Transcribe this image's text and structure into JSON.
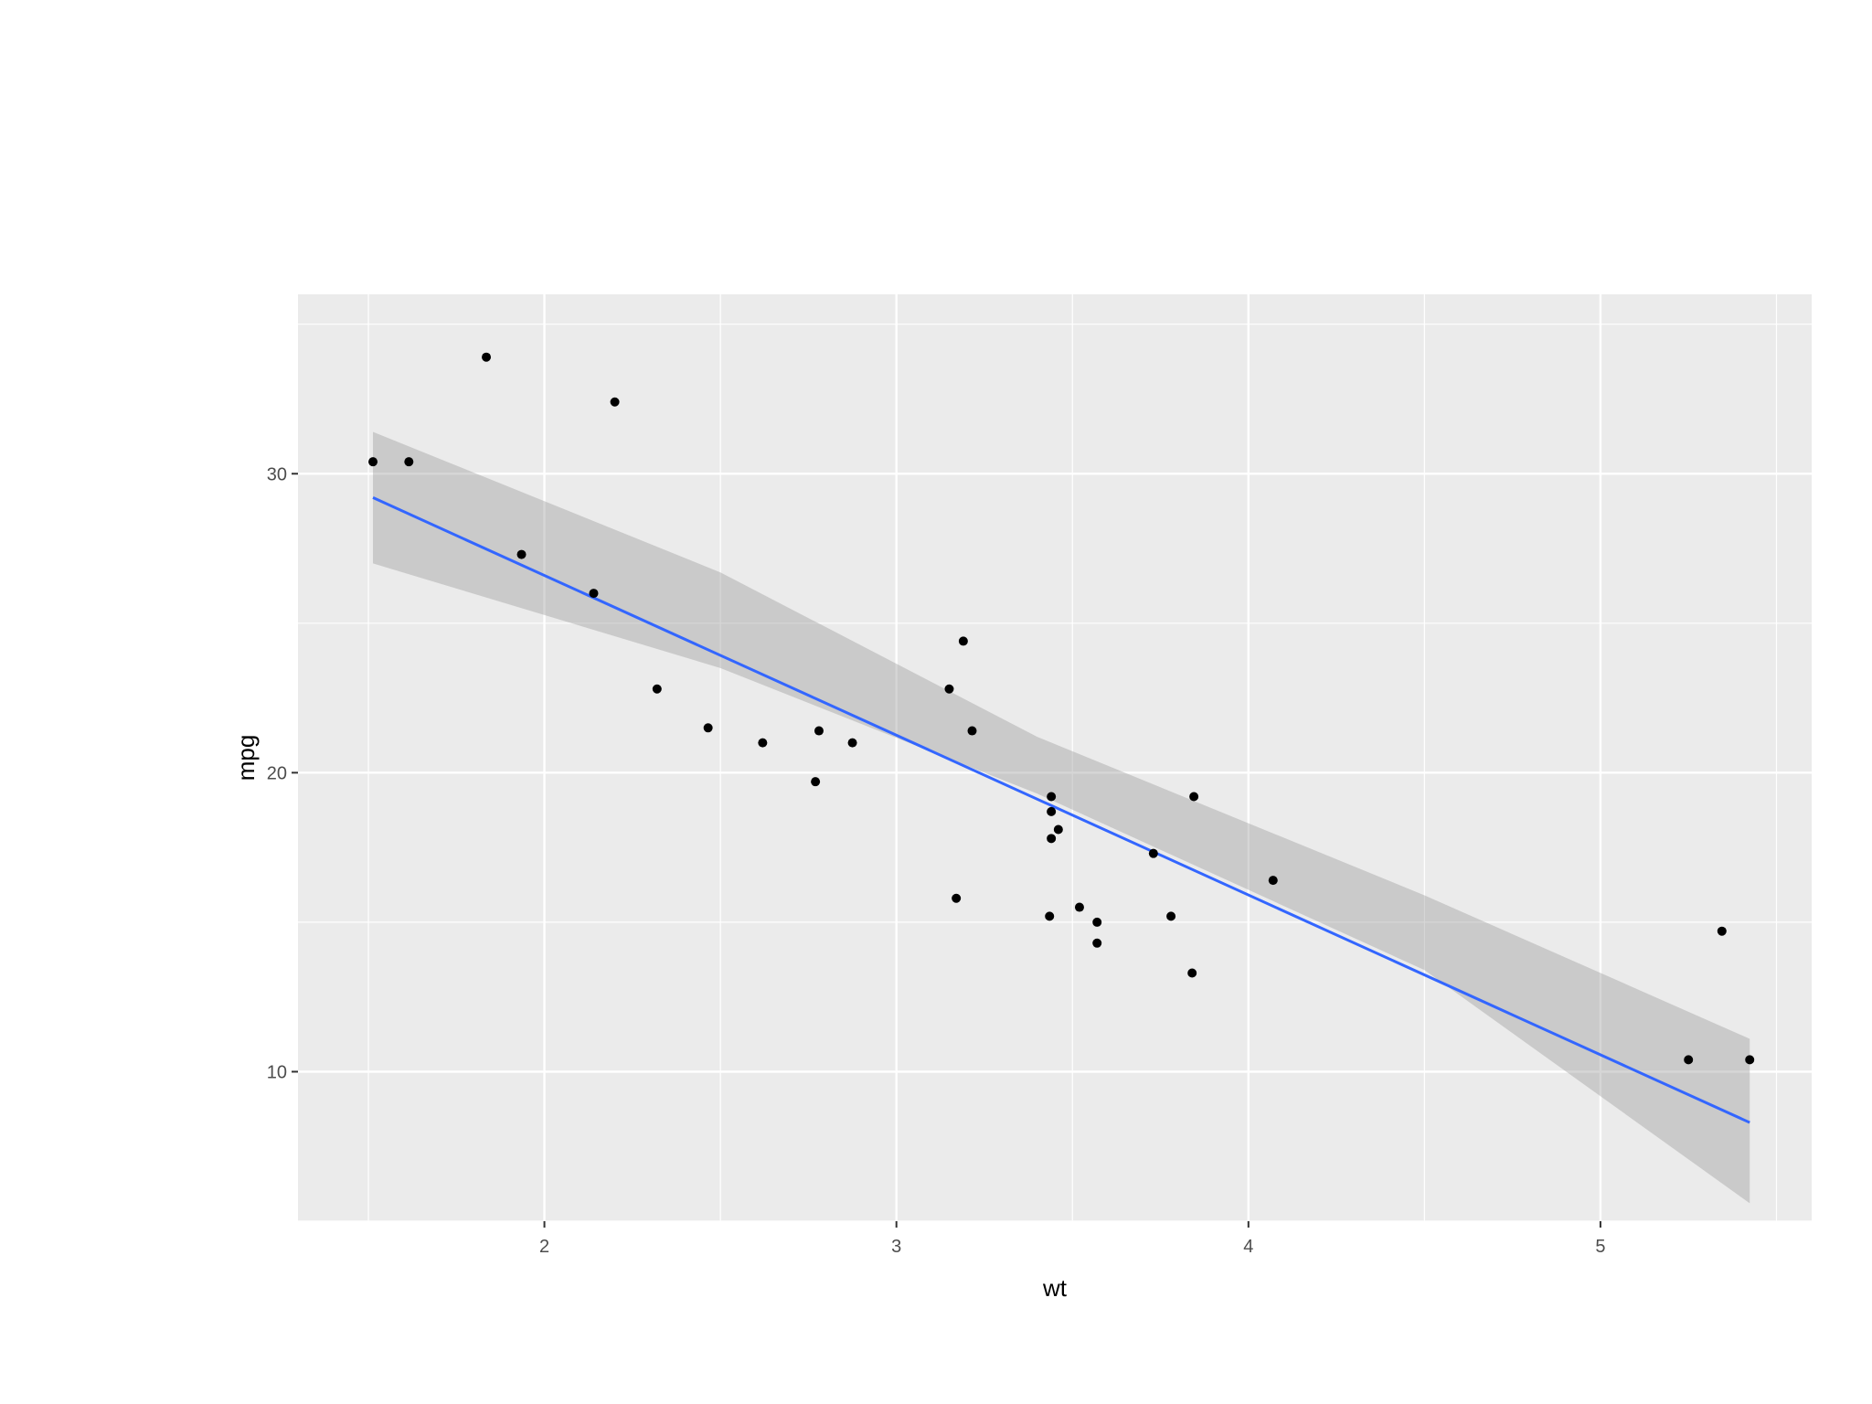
{
  "chart_data": {
    "type": "scatter",
    "title": "",
    "xlabel": "wt",
    "ylabel": "mpg",
    "xlim": [
      1.3,
      5.6
    ],
    "ylim": [
      5,
      36
    ],
    "x_ticks": [
      2,
      3,
      4,
      5
    ],
    "x_tick_labels": [
      "2",
      "3",
      "4",
      "5"
    ],
    "y_ticks": [
      10,
      20,
      30
    ],
    "y_tick_labels": [
      "10",
      "20",
      "30"
    ],
    "grid": true,
    "legend": "none",
    "colors": {
      "panel_background": "#ebebeb",
      "grid": "#ffffff",
      "points": "#000000",
      "fit_line": "#3366ff",
      "confidence_band": "#999999"
    },
    "points": [
      {
        "x": 2.62,
        "y": 21.0
      },
      {
        "x": 2.875,
        "y": 21.0
      },
      {
        "x": 2.32,
        "y": 22.8
      },
      {
        "x": 3.215,
        "y": 21.4
      },
      {
        "x": 3.44,
        "y": 18.7
      },
      {
        "x": 3.46,
        "y": 18.1
      },
      {
        "x": 3.57,
        "y": 14.3
      },
      {
        "x": 3.19,
        "y": 24.4
      },
      {
        "x": 3.15,
        "y": 22.8
      },
      {
        "x": 3.44,
        "y": 19.2
      },
      {
        "x": 3.44,
        "y": 17.8
      },
      {
        "x": 4.07,
        "y": 16.4
      },
      {
        "x": 3.73,
        "y": 17.3
      },
      {
        "x": 3.78,
        "y": 15.2
      },
      {
        "x": 5.25,
        "y": 10.4
      },
      {
        "x": 5.424,
        "y": 10.4
      },
      {
        "x": 5.345,
        "y": 14.7
      },
      {
        "x": 2.2,
        "y": 32.4
      },
      {
        "x": 1.615,
        "y": 30.4
      },
      {
        "x": 1.835,
        "y": 33.9
      },
      {
        "x": 2.465,
        "y": 21.5
      },
      {
        "x": 3.52,
        "y": 15.5
      },
      {
        "x": 3.435,
        "y": 15.2
      },
      {
        "x": 3.84,
        "y": 13.3
      },
      {
        "x": 3.845,
        "y": 19.2
      },
      {
        "x": 1.935,
        "y": 27.3
      },
      {
        "x": 2.14,
        "y": 26.0
      },
      {
        "x": 1.513,
        "y": 30.4
      },
      {
        "x": 3.17,
        "y": 15.8
      },
      {
        "x": 2.77,
        "y": 19.7
      },
      {
        "x": 3.57,
        "y": 15.0
      },
      {
        "x": 2.78,
        "y": 21.4
      }
    ],
    "fit": {
      "method": "lm",
      "x": [
        1.513,
        5.424
      ],
      "y": [
        29.2,
        8.3
      ]
    },
    "confidence_band": {
      "x": [
        1.513,
        2.5,
        3.4,
        4.5,
        5.424
      ],
      "lower": [
        27.0,
        23.5,
        19.3,
        13.4,
        5.6
      ],
      "upper": [
        31.4,
        26.7,
        21.2,
        15.9,
        11.1
      ]
    }
  }
}
